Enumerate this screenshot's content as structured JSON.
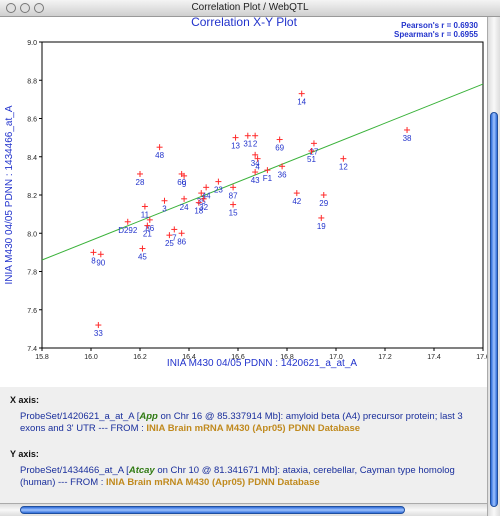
{
  "window": {
    "title": "Correlation Plot / WebQTL"
  },
  "chart_data": {
    "type": "scatter",
    "title": "Correlation X-Y Plot",
    "stats": {
      "pearson": "Pearson's r = 0.6930",
      "spearman": "Spearman's r = 0.6955"
    },
    "xlabel": "INIA M430 04/05 PDNN : 1420621_a_at_A",
    "ylabel": "INIA M430 04/05 PDNN : 1434466_at_A",
    "xlim": [
      15.8,
      17.6
    ],
    "ylim": [
      7.4,
      9.0
    ],
    "xticks": [
      "15.8",
      "16.0",
      "16.2",
      "16.4",
      "16.6",
      "16.8",
      "17.0",
      "17.2",
      "17.4",
      "17.6"
    ],
    "yticks": [
      "7.4",
      "7.6",
      "7.8",
      "8.0",
      "8.2",
      "8.4",
      "8.6",
      "8.8",
      "9.0"
    ],
    "fit_line": {
      "x": [
        15.8,
        17.6
      ],
      "y": [
        7.86,
        8.78
      ]
    },
    "points": [
      {
        "x": 16.86,
        "y": 8.73,
        "label": "14"
      },
      {
        "x": 17.29,
        "y": 8.54,
        "label": "38"
      },
      {
        "x": 16.59,
        "y": 8.5,
        "label": "13"
      },
      {
        "x": 16.64,
        "y": 8.51,
        "label": "31"
      },
      {
        "x": 16.67,
        "y": 8.51,
        "label": "2"
      },
      {
        "x": 16.77,
        "y": 8.49,
        "label": "69"
      },
      {
        "x": 16.67,
        "y": 8.41,
        "label": "34"
      },
      {
        "x": 16.68,
        "y": 8.39,
        "label": "4"
      },
      {
        "x": 16.91,
        "y": 8.47,
        "label": "27"
      },
      {
        "x": 16.9,
        "y": 8.43,
        "label": "51"
      },
      {
        "x": 16.28,
        "y": 8.45,
        "label": "48"
      },
      {
        "x": 17.03,
        "y": 8.39,
        "label": "12"
      },
      {
        "x": 16.78,
        "y": 8.35,
        "label": "36"
      },
      {
        "x": 16.72,
        "y": 8.33,
        "label": "F1"
      },
      {
        "x": 16.67,
        "y": 8.32,
        "label": "43"
      },
      {
        "x": 16.2,
        "y": 8.31,
        "label": "28"
      },
      {
        "x": 16.37,
        "y": 8.31,
        "label": "60"
      },
      {
        "x": 16.38,
        "y": 8.3,
        "label": "9"
      },
      {
        "x": 16.52,
        "y": 8.27,
        "label": "23"
      },
      {
        "x": 16.58,
        "y": 8.24,
        "label": "87"
      },
      {
        "x": 16.47,
        "y": 8.24,
        "label": "44"
      },
      {
        "x": 16.45,
        "y": 8.21,
        "label": "35"
      },
      {
        "x": 16.46,
        "y": 8.18,
        "label": "32"
      },
      {
        "x": 16.38,
        "y": 8.18,
        "label": "24"
      },
      {
        "x": 16.44,
        "y": 8.16,
        "label": "18"
      },
      {
        "x": 16.58,
        "y": 8.15,
        "label": "15"
      },
      {
        "x": 16.84,
        "y": 8.21,
        "label": "42"
      },
      {
        "x": 16.95,
        "y": 8.2,
        "label": "29"
      },
      {
        "x": 16.3,
        "y": 8.17,
        "label": "3"
      },
      {
        "x": 16.22,
        "y": 8.14,
        "label": "11"
      },
      {
        "x": 16.24,
        "y": 8.07,
        "label": "86"
      },
      {
        "x": 16.15,
        "y": 8.06,
        "label": "D292"
      },
      {
        "x": 16.23,
        "y": 8.04,
        "label": "21"
      },
      {
        "x": 16.94,
        "y": 8.08,
        "label": "19"
      },
      {
        "x": 16.34,
        "y": 8.02,
        "label": "7"
      },
      {
        "x": 16.37,
        "y": 8.0,
        "label": "86"
      },
      {
        "x": 16.32,
        "y": 7.99,
        "label": "25"
      },
      {
        "x": 16.21,
        "y": 7.92,
        "label": "45"
      },
      {
        "x": 16.01,
        "y": 7.9,
        "label": "8"
      },
      {
        "x": 16.04,
        "y": 7.89,
        "label": "90"
      },
      {
        "x": 16.03,
        "y": 7.52,
        "label": "33"
      }
    ]
  },
  "x_axis_info": {
    "heading": "X axis:",
    "probeset": "ProbeSet/1420621_a_at_A",
    "gene": "App",
    "location": "on Chr 16 @ 85.337914 Mb]: amyloid beta (A4) precursor protein; last 3 exons and 3' UTR --- FROM :",
    "database": "INIA Brain mRNA M430 (Apr05) PDNN Database"
  },
  "y_axis_info": {
    "heading": "Y axis:",
    "probeset": "ProbeSet/1434466_at_A",
    "gene": "Atcay",
    "location": "on Chr 10 @ 81.341671 Mb]: ataxia, cerebellar, Cayman type homolog (human) --- FROM :",
    "database": "INIA Brain mRNA M430 (Apr05) PDNN Database"
  },
  "colors": {
    "title": "#2233cc",
    "point": "#ff2a2a",
    "label": "#2233cc",
    "fit": "#3ab23a"
  }
}
